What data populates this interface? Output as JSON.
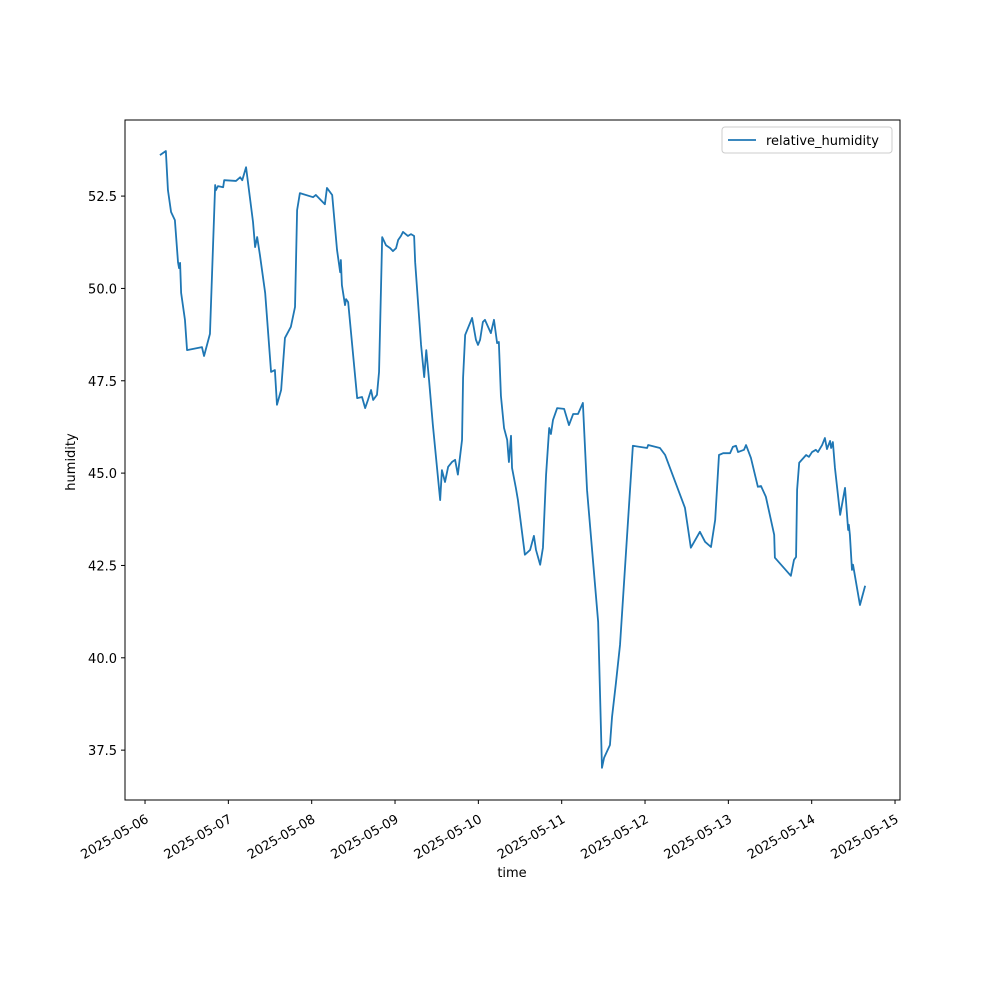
{
  "chart_data": {
    "type": "line",
    "x_label": "time",
    "y_label": "humidity",
    "x": [
      "2025-05-06T04:18Z",
      "2025-05-06T06:00Z",
      "2025-05-06T06:36Z",
      "2025-05-06T07:30Z",
      "2025-05-06T08:36Z",
      "2025-05-06T09:30Z",
      "2025-05-06T09:48Z",
      "2025-05-06T10:06Z",
      "2025-05-06T10:24Z",
      "2025-05-06T11:30Z",
      "2025-05-06T12:06Z",
      "2025-05-06T16:24Z",
      "2025-05-06T17:00Z",
      "2025-05-06T18:42Z",
      "2025-05-06T20:12Z",
      "2025-05-06T20:24Z",
      "2025-05-06T21:00Z",
      "2025-05-06T22:30Z",
      "2025-05-06T22:48Z",
      "2025-05-07T02:12Z",
      "2025-05-07T03:24Z",
      "2025-05-07T04:00Z",
      "2025-05-07T05:06Z",
      "2025-05-07T07:06Z",
      "2025-05-07T07:42Z",
      "2025-05-07T08:18Z",
      "2025-05-07T09:06Z",
      "2025-05-07T10:36Z",
      "2025-05-07T12:18Z",
      "2025-05-07T13:24Z",
      "2025-05-07T14:00Z",
      "2025-05-07T15:12Z",
      "2025-05-07T16:18Z",
      "2025-05-07T18:00Z",
      "2025-05-07T19:12Z",
      "2025-05-07T19:48Z",
      "2025-05-07T20:36Z",
      "2025-05-08T00:24Z",
      "2025-05-08T01:12Z",
      "2025-05-08T03:48Z",
      "2025-05-08T04:24Z",
      "2025-05-08T05:54Z",
      "2025-05-08T07:18Z",
      "2025-05-08T08:12Z",
      "2025-05-08T08:24Z",
      "2025-05-08T08:42Z",
      "2025-05-08T09:36Z",
      "2025-05-08T09:54Z",
      "2025-05-08T10:30Z",
      "2025-05-08T13:06Z",
      "2025-05-08T14:30Z",
      "2025-05-08T15:24Z",
      "2025-05-08T16:12Z",
      "2025-05-08T17:06Z",
      "2025-05-08T17:42Z",
      "2025-05-08T18:48Z",
      "2025-05-08T19:24Z",
      "2025-05-08T20:18Z",
      "2025-05-08T21:24Z",
      "2025-05-08T22:36Z",
      "2025-05-08T23:24Z",
      "2025-05-09T00:18Z",
      "2025-05-09T00:54Z",
      "2025-05-09T01:42Z",
      "2025-05-09T02:18Z",
      "2025-05-09T03:42Z",
      "2025-05-09T04:36Z",
      "2025-05-09T05:30Z",
      "2025-05-09T05:48Z",
      "2025-05-09T07:30Z",
      "2025-05-09T08:24Z",
      "2025-05-09T09:00Z",
      "2025-05-09T09:48Z",
      "2025-05-09T10:54Z",
      "2025-05-09T13:00Z",
      "2025-05-09T13:30Z",
      "2025-05-09T14:24Z",
      "2025-05-09T15:18Z",
      "2025-05-09T16:24Z",
      "2025-05-09T17:18Z",
      "2025-05-09T18:06Z",
      "2025-05-09T19:18Z",
      "2025-05-09T19:36Z",
      "2025-05-09T20:12Z",
      "2025-05-09T22:12Z",
      "2025-05-09T23:18Z",
      "2025-05-09T23:54Z",
      "2025-05-10T00:30Z",
      "2025-05-10T01:18Z",
      "2025-05-10T01:54Z",
      "2025-05-10T03:36Z",
      "2025-05-10T04:30Z",
      "2025-05-10T05:24Z",
      "2025-05-10T05:54Z",
      "2025-05-10T06:30Z",
      "2025-05-10T07:24Z",
      "2025-05-10T08:18Z",
      "2025-05-10T08:48Z",
      "2025-05-10T09:24Z",
      "2025-05-10T09:42Z",
      "2025-05-10T10:48Z",
      "2025-05-10T11:24Z",
      "2025-05-10T13:24Z",
      "2025-05-10T14:54Z",
      "2025-05-10T16:00Z",
      "2025-05-10T16:36Z",
      "2025-05-10T17:48Z",
      "2025-05-10T18:36Z",
      "2025-05-10T19:30Z",
      "2025-05-10T20:24Z",
      "2025-05-10T20:54Z",
      "2025-05-10T21:30Z",
      "2025-05-10T22:42Z",
      "2025-05-11T00:42Z",
      "2025-05-11T02:06Z",
      "2025-05-11T03:18Z",
      "2025-05-11T04:42Z",
      "2025-05-11T06:06Z",
      "2025-05-11T07:18Z",
      "2025-05-11T10:30Z",
      "2025-05-11T11:36Z",
      "2025-05-11T12:12Z",
      "2025-05-11T13:54Z",
      "2025-05-11T14:30Z",
      "2025-05-11T15:36Z",
      "2025-05-11T16:48Z",
      "2025-05-11T20:30Z",
      "2025-05-12T00:36Z",
      "2025-05-12T00:54Z",
      "2025-05-12T04:18Z",
      "2025-05-12T05:48Z",
      "2025-05-12T11:30Z",
      "2025-05-12T13:12Z",
      "2025-05-12T15:48Z",
      "2025-05-12T17:18Z",
      "2025-05-12T19:00Z",
      "2025-05-12T20:12Z",
      "2025-05-12T21:18Z",
      "2025-05-12T22:30Z",
      "2025-05-13T00:30Z",
      "2025-05-13T01:18Z",
      "2025-05-13T02:12Z",
      "2025-05-13T02:48Z",
      "2025-05-13T04:30Z",
      "2025-05-13T05:06Z",
      "2025-05-13T06:30Z",
      "2025-05-13T08:30Z",
      "2025-05-13T09:24Z",
      "2025-05-13T10:48Z",
      "2025-05-13T13:12Z",
      "2025-05-13T13:24Z",
      "2025-05-13T18:00Z",
      "2025-05-13T18:54Z",
      "2025-05-13T19:30Z",
      "2025-05-13T19:48Z",
      "2025-05-13T20:24Z",
      "2025-05-13T22:24Z",
      "2025-05-13T23:12Z",
      "2025-05-14T00:06Z",
      "2025-05-14T01:12Z",
      "2025-05-14T01:48Z",
      "2025-05-14T03:00Z",
      "2025-05-14T03:48Z",
      "2025-05-14T04:24Z",
      "2025-05-14T05:18Z",
      "2025-05-14T05:36Z",
      "2025-05-14T06:06Z",
      "2025-05-14T06:42Z",
      "2025-05-14T08:12Z",
      "2025-05-14T09:36Z",
      "2025-05-14T10:30Z",
      "2025-05-14T10:42Z",
      "2025-05-14T11:00Z",
      "2025-05-14T11:36Z",
      "2025-05-14T11:54Z",
      "2025-05-14T13:54Z",
      "2025-05-14T15:24Z"
    ],
    "series": [
      {
        "name": "relative_humidity",
        "color": "#1f77b4",
        "values": [
          53.61,
          53.72,
          52.66,
          52.07,
          51.85,
          50.71,
          50.55,
          50.69,
          49.88,
          49.15,
          48.33,
          48.41,
          48.17,
          48.77,
          52.8,
          52.66,
          52.77,
          52.74,
          52.93,
          52.91,
          53.01,
          52.93,
          53.28,
          51.8,
          51.12,
          51.39,
          50.9,
          49.88,
          47.74,
          47.79,
          46.85,
          47.25,
          48.66,
          48.96,
          49.5,
          52.12,
          52.58,
          52.47,
          52.53,
          52.28,
          52.72,
          52.53,
          51.04,
          50.44,
          50.77,
          50.09,
          49.55,
          49.71,
          49.63,
          47.03,
          47.06,
          46.76,
          46.98,
          47.25,
          46.98,
          47.12,
          47.74,
          51.39,
          51.17,
          51.09,
          51.01,
          51.09,
          51.31,
          51.42,
          51.53,
          51.42,
          51.47,
          51.42,
          50.71,
          48.47,
          47.6,
          48.33,
          47.52,
          46.3,
          44.27,
          45.08,
          44.76,
          45.17,
          45.3,
          45.36,
          44.96,
          45.9,
          47.58,
          48.74,
          49.2,
          48.61,
          48.47,
          48.61,
          49.09,
          49.15,
          48.79,
          49.15,
          48.52,
          48.55,
          47.09,
          46.22,
          45.9,
          45.3,
          46.01,
          45.14,
          44.6,
          44.27,
          42.79,
          42.92,
          43.3,
          42.92,
          42.52,
          42.98,
          44.95,
          46.22,
          46.06,
          46.44,
          46.76,
          46.74,
          46.3,
          46.6,
          46.6,
          46.9,
          44.54,
          40.97,
          37.02,
          37.29,
          37.64,
          38.4,
          39.3,
          40.35,
          45.74,
          45.68,
          45.76,
          45.68,
          45.49,
          44.06,
          42.98,
          43.41,
          43.14,
          43.0,
          43.73,
          45.49,
          45.54,
          45.54,
          45.71,
          45.74,
          45.57,
          45.63,
          45.76,
          45.41,
          44.63,
          44.65,
          44.36,
          43.33,
          42.71,
          42.22,
          42.65,
          42.73,
          44.55,
          45.28,
          45.49,
          45.44,
          45.57,
          45.63,
          45.57,
          45.76,
          45.95,
          45.65,
          45.87,
          45.68,
          45.84,
          45.14,
          43.87,
          44.6,
          43.46,
          43.6,
          43.33,
          42.38,
          42.52,
          41.43,
          41.95
        ]
      }
    ],
    "xlim": [
      "2025-05-05T18:14Z",
      "2025-05-15T01:26Z"
    ],
    "xticks": [
      "2025-05-06",
      "2025-05-07",
      "2025-05-08",
      "2025-05-09",
      "2025-05-10",
      "2025-05-11",
      "2025-05-12",
      "2025-05-13",
      "2025-05-14",
      "2025-05-15"
    ],
    "ylim": [
      36.15,
      54.56
    ],
    "yticks": [
      37.5,
      {
        "value": 40,
        "label": "40.0"
      },
      42.5,
      {
        "value": 45,
        "label": "45.0"
      },
      47.5,
      {
        "value": 50,
        "label": "50.0"
      },
      52.5
    ],
    "grid": false,
    "legend": "upper right"
  }
}
